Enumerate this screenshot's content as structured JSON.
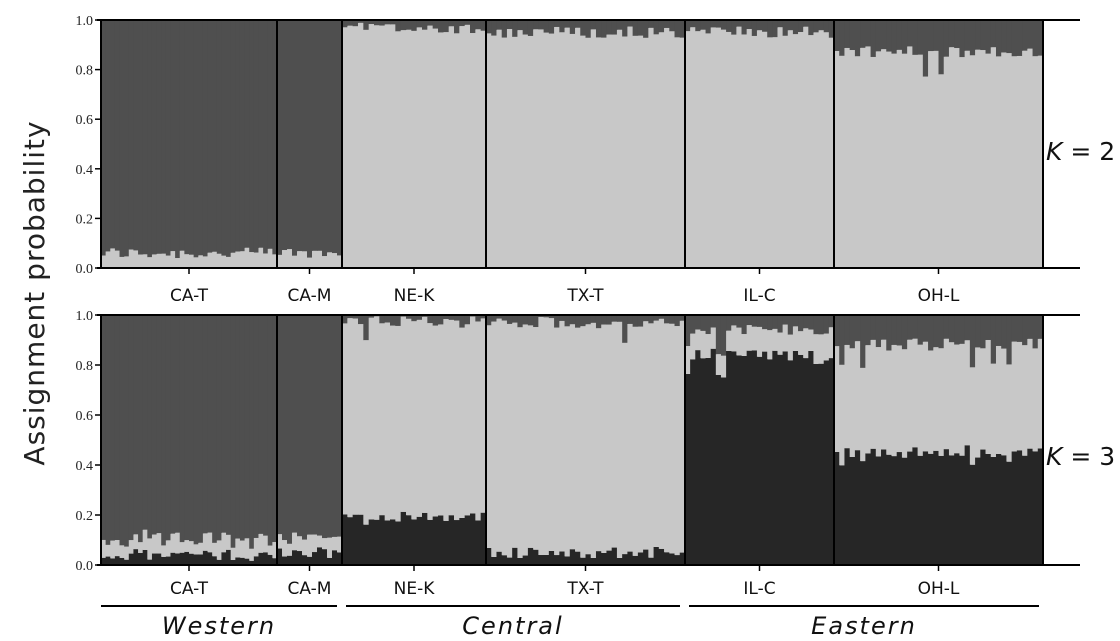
{
  "chart_data": {
    "type": "bar",
    "subtype": "stacked-structure-plot",
    "ylabel": "Assignment probability",
    "ylim": [
      0,
      1
    ],
    "yticks": [
      "0.0",
      "0.2",
      "0.4",
      "0.6",
      "0.8",
      "1.0"
    ],
    "cluster_colors": [
      "#4f4f4f",
      "#c8c8c8",
      "#262626"
    ],
    "populations": [
      {
        "name": "CA-T",
        "n": 38
      },
      {
        "name": "CA-M",
        "n": 13
      },
      {
        "name": "NE-K",
        "n": 27
      },
      {
        "name": "TX-T",
        "n": 38
      },
      {
        "name": "IL-C",
        "n": 29
      },
      {
        "name": "OH-L",
        "n": 40
      }
    ],
    "panels": [
      {
        "k_prefix": "K",
        "k_suffix": " = 2",
        "series": [
          {
            "cluster": 1,
            "mean_by_population": [
              0.94,
              0.94,
              0.03,
              0.05,
              0.05,
              0.13
            ]
          },
          {
            "cluster": 2,
            "mean_by_population": [
              0.06,
              0.06,
              0.97,
              0.95,
              0.95,
              0.87
            ]
          }
        ]
      },
      {
        "k_prefix": "K",
        "k_suffix": " = 3",
        "series": [
          {
            "cluster": 1,
            "mean_by_population": [
              0.9,
              0.88,
              0.03,
              0.03,
              0.06,
              0.12
            ]
          },
          {
            "cluster": 2,
            "mean_by_population": [
              0.06,
              0.07,
              0.78,
              0.92,
              0.1,
              0.43
            ]
          },
          {
            "cluster": 3,
            "mean_by_population": [
              0.04,
              0.05,
              0.19,
              0.05,
              0.84,
              0.45
            ]
          }
        ]
      }
    ],
    "regions": [
      {
        "name": "Western",
        "populations": [
          "CA-T",
          "CA-M"
        ]
      },
      {
        "name": "Central",
        "populations": [
          "NE-K",
          "TX-T"
        ]
      },
      {
        "name": "Eastern",
        "populations": [
          "IL-C",
          "OH-L"
        ]
      }
    ]
  }
}
